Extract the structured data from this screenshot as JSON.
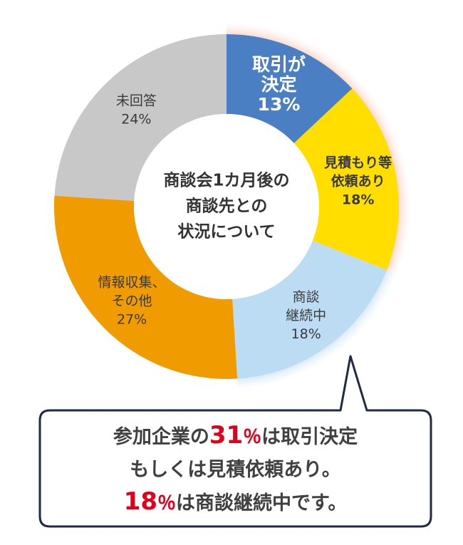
{
  "chart_data": {
    "type": "pie",
    "variant": "donut",
    "center_label": [
      "商談会1カ月後の",
      "商談先との",
      "状況について"
    ],
    "slices": [
      {
        "label_lines": [
          "取引が",
          "決定"
        ],
        "pct_label": "13%",
        "value": 13,
        "color": "#4b7fc4",
        "text_color": "#ffffff",
        "highlight": true
      },
      {
        "label_lines": [
          "見積もり等",
          "依頼あり"
        ],
        "pct_label": "18%",
        "value": 18,
        "color": "#ffde00",
        "text_color": "#3a3a3a",
        "highlight": true
      },
      {
        "label_lines": [
          "商談",
          "継続中"
        ],
        "pct_label": "18%",
        "value": 18,
        "color": "#bcdcf3",
        "text_color": "#3a3a3a",
        "highlight": false
      },
      {
        "label_lines": [
          "情報収集、",
          "その他"
        ],
        "pct_label": "27%",
        "value": 27,
        "color": "#f09b00",
        "text_color": "#3a3a3a",
        "highlight": false
      },
      {
        "label_lines": [
          "未回答"
        ],
        "pct_label": "24%",
        "value": 24,
        "color": "#c8c8c8",
        "text_color": "#3a3a3a",
        "highlight": false
      }
    ]
  },
  "callout": {
    "line1": {
      "pre": "参加企業の",
      "num": "31",
      "unit": "％",
      "post": "は取引決定"
    },
    "line2": "もしくは見積依頼あり。",
    "line3": {
      "num": "18",
      "unit": "％",
      "post": "は商談継続中です。"
    }
  }
}
